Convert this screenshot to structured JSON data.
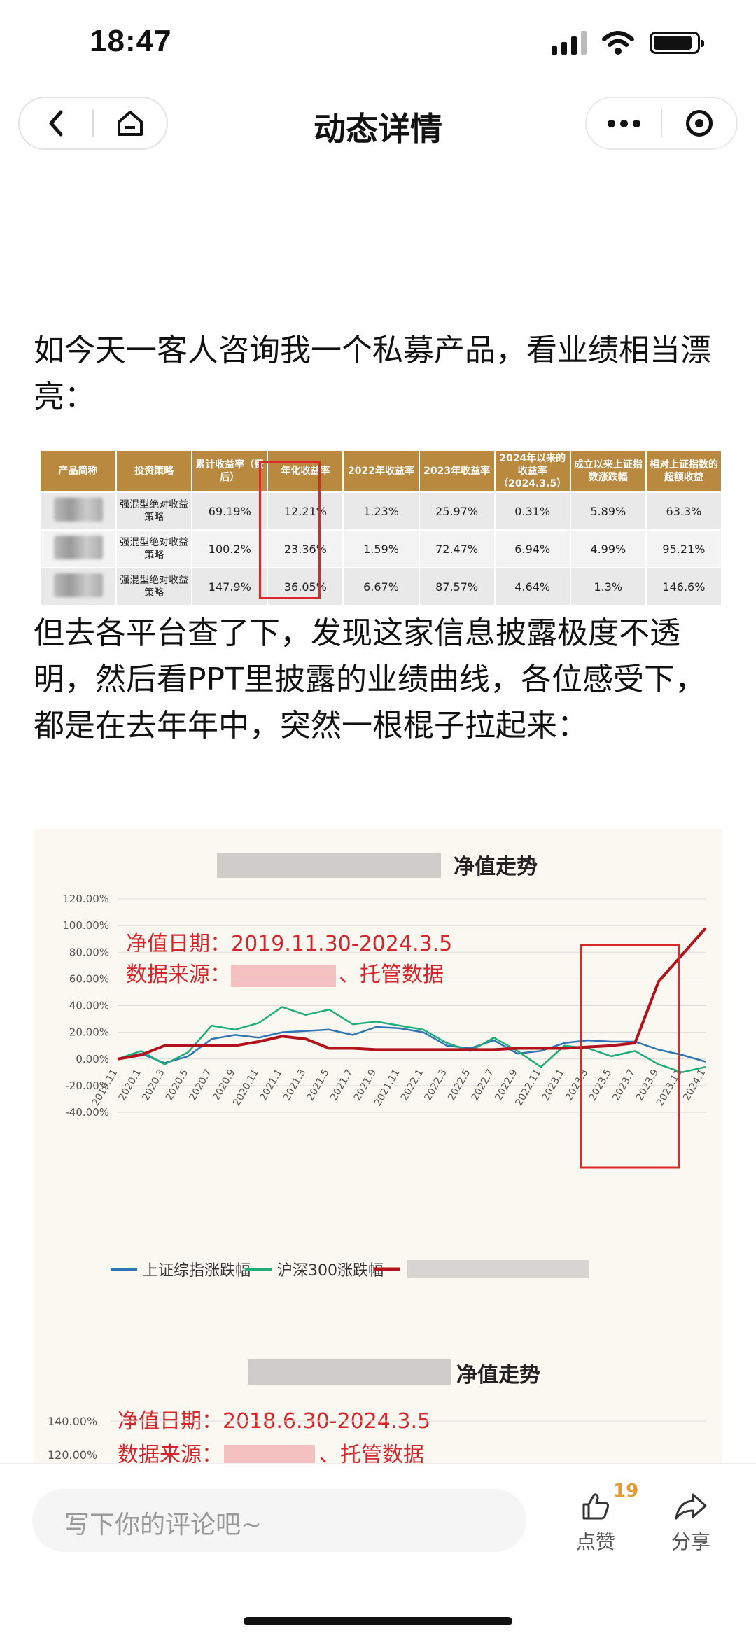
{
  "status_bar": {
    "time": "18:47"
  },
  "nav": {
    "title": "动态详情"
  },
  "post": {
    "paragraph1": "如今天一客人咨询我一个私募产品，看业绩相当漂亮：",
    "paragraph2": "但去各平台查了下，发现这家信息披露极度不透明，然后看PPT里披露的业绩曲线，各位感受下， 都是在去年年中，突然一根棍子拉起来："
  },
  "table": {
    "headers": [
      "产品简称",
      "投资策略",
      "累计收益率（费后）",
      "年化收益率",
      "2022年收益率",
      "2023年收益率",
      "2024年以来的收益率（2024.3.5）",
      "成立以来上证指数涨跌幅",
      "相对上证指数的超额收益"
    ],
    "rows": [
      [
        "",
        "强混型绝对收益策略",
        "69.19%",
        "12.21%",
        "1.23%",
        "25.97%",
        "0.31%",
        "5.89%",
        "63.3%"
      ],
      [
        "",
        "强混型绝对收益策略",
        "100.2%",
        "23.36%",
        "1.59%",
        "72.47%",
        "6.94%",
        "4.99%",
        "95.21%"
      ],
      [
        "",
        "强混型绝对收益策略",
        "147.9%",
        "36.05%",
        "6.67%",
        "87.57%",
        "4.64%",
        "1.3%",
        "146.6%"
      ]
    ]
  },
  "chart1": {
    "title": "净值走势",
    "date_range": "净值日期：2019.11.30-2024.3.5",
    "source_label": "数据来源：",
    "source_tail": "、托管数据",
    "legend": [
      "上证综指涨跌幅",
      "沪深300涨跌幅"
    ]
  },
  "chart2": {
    "title": "净值走势",
    "date_range": "净值日期：2018.6.30-2024.3.5",
    "source_label": "数据来源：",
    "source_tail": "、托管数据",
    "y_ticks_visible": [
      "140.00%",
      "120.00%"
    ]
  },
  "chart_data": {
    "type": "line",
    "x": [
      "2019.11",
      "2020.1",
      "2020.3",
      "2020.5",
      "2020.7",
      "2020.9",
      "2020.11",
      "2021.1",
      "2021.3",
      "2021.5",
      "2021.7",
      "2021.9",
      "2021.11",
      "2022.1",
      "2022.3",
      "2022.5",
      "2022.7",
      "2022.9",
      "2022.11",
      "2023.1",
      "2023.3",
      "2023.5",
      "2023.7",
      "2023.9",
      "2023.11",
      "2024.1"
    ],
    "y_ticks": [
      "120.00%",
      "100.00%",
      "80.00%",
      "60.00%",
      "40.00%",
      "20.00%",
      "0.00%",
      "-20.00%",
      "-40.00%"
    ],
    "ylim": [
      -40,
      120
    ],
    "series": [
      {
        "name": "上证综指涨跌幅",
        "color": "#2e75b6",
        "values": [
          0,
          4,
          -3,
          2,
          15,
          18,
          16,
          20,
          21,
          22,
          18,
          24,
          23,
          20,
          10,
          8,
          14,
          4,
          6,
          12,
          14,
          13,
          13,
          7,
          3,
          -2
        ]
      },
      {
        "name": "沪深300涨跌幅",
        "color": "#1fae7a",
        "values": [
          0,
          6,
          -4,
          5,
          25,
          22,
          27,
          39,
          33,
          37,
          26,
          28,
          25,
          22,
          12,
          6,
          16,
          6,
          -6,
          10,
          8,
          2,
          6,
          -4,
          -10,
          -6
        ]
      },
      {
        "name": "",
        "color": "#b3121b",
        "values": [
          0,
          3,
          10,
          10,
          10,
          10,
          13,
          17,
          15,
          8,
          8,
          7,
          7,
          7,
          7,
          7,
          7,
          8,
          8,
          8,
          9,
          10,
          12,
          58,
          78,
          98
        ]
      }
    ],
    "highlight_box": true
  },
  "bottom": {
    "comment_placeholder": "写下你的评论吧~",
    "like_label": "点赞",
    "like_count": "19",
    "share_label": "分享"
  }
}
